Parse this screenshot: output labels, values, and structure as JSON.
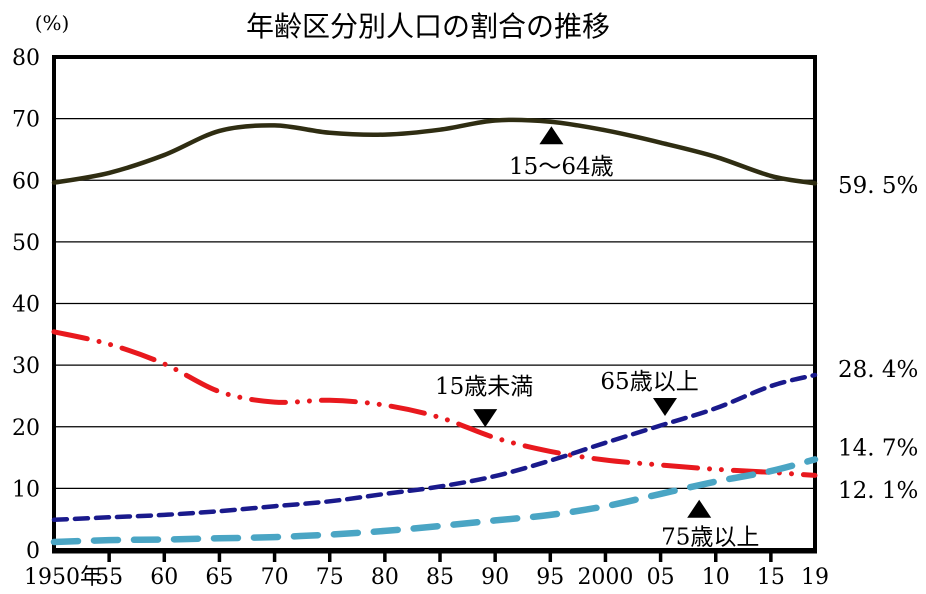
{
  "title": "年齢区分別人口の割合の推移",
  "y_axis": {
    "unit": "(%)",
    "ticks": [
      0,
      10,
      20,
      30,
      40,
      50,
      60,
      70,
      80
    ]
  },
  "x_axis": {
    "labels": [
      "1950年",
      "55",
      "60",
      "65",
      "70",
      "75",
      "80",
      "85",
      "90",
      "95",
      "2000",
      "05",
      "10",
      "15",
      "19"
    ],
    "years": [
      1950,
      1955,
      1960,
      1965,
      1970,
      1975,
      1980,
      1985,
      1990,
      1995,
      2000,
      2005,
      2010,
      2015,
      2019
    ]
  },
  "chart_data": {
    "type": "line",
    "title": "年齢区分別人口の割合の推移",
    "ylabel": "(%)",
    "xlim": [
      1950,
      2019
    ],
    "ylim": [
      0,
      80
    ],
    "grid": "horizontal",
    "x": [
      1950,
      1955,
      1960,
      1965,
      1970,
      1975,
      1980,
      1985,
      1990,
      1995,
      2000,
      2005,
      2010,
      2015,
      2019
    ],
    "series": [
      {
        "key": "age-15-64",
        "name": "15〜64歳",
        "style": "solid",
        "color": "#2f2d12",
        "values": [
          59.6,
          61.2,
          64.1,
          68.0,
          68.9,
          67.7,
          67.4,
          68.2,
          69.7,
          69.5,
          68.1,
          66.1,
          63.8,
          60.7,
          59.5
        ]
      },
      {
        "key": "under-15",
        "name": "15歳未満",
        "style": "dash-dot-dot",
        "color": "#e8191e",
        "values": [
          35.4,
          33.4,
          30.2,
          25.7,
          24.0,
          24.3,
          23.5,
          21.5,
          18.2,
          16.0,
          14.6,
          13.8,
          13.1,
          12.6,
          12.1
        ]
      },
      {
        "key": "over-65",
        "name": "65歳以上",
        "style": "dashed",
        "color": "#1a1a8c",
        "values": [
          4.9,
          5.3,
          5.7,
          6.3,
          7.1,
          7.9,
          9.1,
          10.3,
          12.0,
          14.5,
          17.4,
          20.2,
          23.0,
          26.6,
          28.4
        ]
      },
      {
        "key": "over-75",
        "name": "75歳以上",
        "style": "long-dash",
        "color": "#4aa5c4",
        "values": [
          1.3,
          1.6,
          1.7,
          1.9,
          2.1,
          2.5,
          3.1,
          3.9,
          4.8,
          5.7,
          7.1,
          9.1,
          11.1,
          12.8,
          14.7
        ]
      }
    ],
    "end_labels": [
      {
        "series": "15〜64歳",
        "text": "59. 5%",
        "value": 59.5,
        "label_pct": 59.2
      },
      {
        "series": "65歳以上",
        "text": "28. 4%",
        "value": 28.4,
        "label_pct": 29.4
      },
      {
        "series": "75歳以上",
        "text": "14. 7%",
        "value": 14.7,
        "label_pct": 16.6
      },
      {
        "series": "15歳未満",
        "text": "12. 1%",
        "value": 12.1,
        "label_pct": 9.7
      }
    ],
    "annotations": [
      {
        "text": "15〜64歳",
        "label_year": 1996,
        "label_pct": 62.3,
        "marker": "up",
        "marker_year": 1995.1,
        "marker_pct": 67.3
      },
      {
        "text": "15歳未満",
        "label_year": 1989,
        "label_pct": 26.6,
        "marker": "down",
        "marker_year": 1989.1,
        "marker_pct": 21.4
      },
      {
        "text": "65歳以上",
        "label_year": 2004,
        "label_pct": 27.4,
        "marker": "down",
        "marker_year": 2005.4,
        "marker_pct": 23.2
      },
      {
        "text": "75歳以上",
        "label_year": 2009.5,
        "label_pct": 2.2,
        "marker": "up",
        "marker_year": 2008.5,
        "marker_pct": 6.7
      }
    ]
  }
}
